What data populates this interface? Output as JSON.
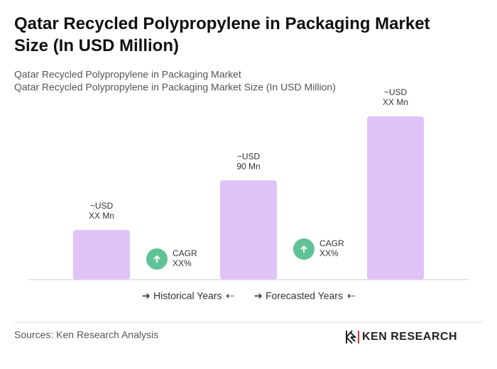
{
  "chart_data": {
    "type": "bar",
    "title": "Qatar Recycled Polypropylene in Packaging Market Size (In USD Million)",
    "subtitle": [
      "Qatar Recycled Polypropylene in Packaging Market",
      "Qatar Recycled Polypropylene in Packaging Market Size (In USD Million)"
    ],
    "categories": [
      null,
      null,
      null
    ],
    "values": [
      45,
      90,
      148
    ],
    "value_labels": [
      [
        "~USD",
        "XX Mn"
      ],
      [
        "~USD",
        "90 Mn"
      ],
      [
        "~USD",
        "XX Mn"
      ]
    ],
    "color": "#dfc3f7",
    "annotations": [
      [
        "CAGR",
        "XX%"
      ],
      [
        "CAGR",
        "XX%"
      ]
    ],
    "legend": [
      "Historical Years",
      "Forecasted Years"
    ],
    "source": "Sources: Ken Research Analysis",
    "brand": "KEN RESEARCH"
  }
}
